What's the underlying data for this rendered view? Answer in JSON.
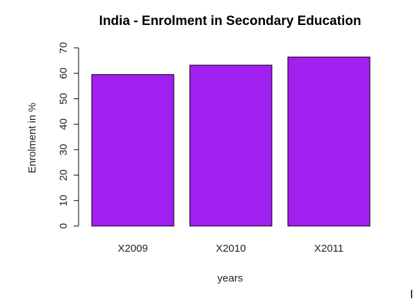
{
  "chart_data": {
    "type": "bar",
    "title": "India - Enrolment in  Secondary Education",
    "xlabel": "years",
    "ylabel": "Enrolment in %",
    "categories": [
      "X2009",
      "X2010",
      "X2011"
    ],
    "values": [
      59.5,
      63.2,
      66.4
    ],
    "ylim": [
      0,
      70
    ],
    "yticks": [
      0,
      10,
      20,
      30,
      40,
      50,
      60,
      70
    ],
    "bar_color": "#a020f0",
    "grid": false,
    "legend": "none"
  }
}
